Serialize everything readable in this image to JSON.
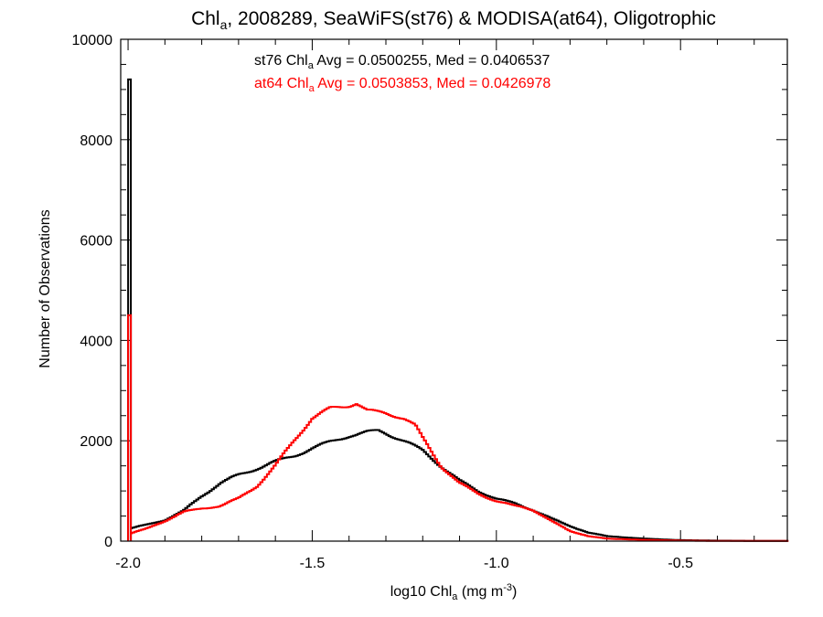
{
  "chart_data": {
    "type": "line",
    "title": {
      "pre": "Chl",
      "sub": "a",
      "post": ", 2008289, SeaWiFS(st76) & MODISA(at64), Oligotrophic"
    },
    "xlabel": {
      "pre": "log10 Chl",
      "sub": "a",
      "mid": " (mg m",
      "sup": "-3",
      "post": ")"
    },
    "ylabel": "Number of Observations",
    "xlim": [
      -2.02,
      -0.21
    ],
    "ylim": [
      0,
      10000
    ],
    "xticks": [
      -2.0,
      -1.5,
      -1.0,
      -0.5
    ],
    "xtick_labels": [
      "-2.0",
      "-1.5",
      "-1.0",
      "-0.5"
    ],
    "yticks": [
      0,
      2000,
      4000,
      6000,
      8000,
      10000
    ],
    "ytick_labels": [
      "0",
      "2000",
      "4000",
      "6000",
      "8000",
      "10000"
    ],
    "grid": false,
    "annotations": [
      {
        "pre": "st76 Chl",
        "sub": "a",
        "post": " Avg = 0.0500255, Med = 0.0406537",
        "color": "#000000"
      },
      {
        "pre": "at64 Chl",
        "sub": "a",
        "post": " Avg = 0.0503853, Med = 0.0426978",
        "color": "#ff0000"
      }
    ],
    "series": [
      {
        "color": "#000000",
        "spike": {
          "x": -2.0,
          "y": 9200
        },
        "x": [
          -1.995,
          -1.95,
          -1.9,
          -1.85,
          -1.8,
          -1.75,
          -1.7,
          -1.65,
          -1.6,
          -1.55,
          -1.5,
          -1.45,
          -1.4,
          -1.35,
          -1.32,
          -1.3,
          -1.25,
          -1.2,
          -1.15,
          -1.1,
          -1.05,
          -1.0,
          -0.95,
          -0.9,
          -0.85,
          -0.8,
          -0.75,
          -0.7,
          -0.6,
          -0.5,
          -0.4,
          -0.3,
          -0.21
        ],
        "y": [
          250,
          330,
          420,
          600,
          900,
          1150,
          1320,
          1450,
          1580,
          1700,
          1850,
          1980,
          2100,
          2170,
          2200,
          2150,
          2000,
          1800,
          1500,
          1200,
          1000,
          850,
          750,
          620,
          450,
          300,
          170,
          100,
          50,
          20,
          10,
          5,
          5
        ]
      },
      {
        "color": "#ff0000",
        "spike": {
          "x": -2.0,
          "y": 4500
        },
        "x": [
          -1.995,
          -1.95,
          -1.9,
          -1.85,
          -1.8,
          -1.75,
          -1.7,
          -1.65,
          -1.6,
          -1.55,
          -1.5,
          -1.45,
          -1.4,
          -1.38,
          -1.35,
          -1.3,
          -1.25,
          -1.22,
          -1.2,
          -1.15,
          -1.1,
          -1.05,
          -1.0,
          -0.95,
          -0.93,
          -0.9,
          -0.85,
          -0.8,
          -0.75,
          -0.7,
          -0.6,
          -0.5,
          -0.4,
          -0.3,
          -0.21
        ],
        "y": [
          150,
          250,
          400,
          580,
          650,
          700,
          850,
          1100,
          1500,
          2000,
          2450,
          2650,
          2700,
          2750,
          2600,
          2550,
          2450,
          2300,
          2050,
          1500,
          1150,
          950,
          800,
          700,
          680,
          620,
          400,
          200,
          100,
          50,
          25,
          10,
          5,
          3,
          3
        ]
      }
    ]
  }
}
